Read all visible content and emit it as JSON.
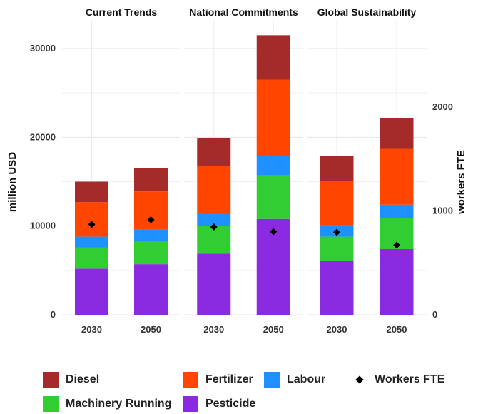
{
  "chart_data": {
    "type": "bar",
    "stacked": true,
    "facets": [
      "Current Trends",
      "National Commitments",
      "Global Sustainability"
    ],
    "categories": [
      "2030",
      "2050"
    ],
    "ylabel": "million USD",
    "y2label": "workers FTE",
    "ylim": [
      0,
      32000
    ],
    "y_ticks": [
      "0",
      "10000",
      "20000",
      "30000"
    ],
    "y2lim": [
      0,
      2750
    ],
    "y2_ticks": [
      "0",
      "1000",
      "2000"
    ],
    "grid": true,
    "legend_position": "bottom",
    "series": [
      {
        "name": "Pesticide",
        "color": "#8a2be2",
        "values": [
          [
            5200,
            5700
          ],
          [
            6900,
            10800
          ],
          [
            6100,
            7400
          ]
        ]
      },
      {
        "name": "Machinery Running",
        "color": "#32cd32",
        "values": [
          [
            2400,
            2600
          ],
          [
            3100,
            4900
          ],
          [
            2700,
            3500
          ]
        ]
      },
      {
        "name": "Labour",
        "color": "#1e90ff",
        "values": [
          [
            1200,
            1300
          ],
          [
            1500,
            2200
          ],
          [
            1300,
            1500
          ]
        ]
      },
      {
        "name": "Fertilizer",
        "color": "#ff4500",
        "values": [
          [
            3900,
            4300
          ],
          [
            5300,
            8600
          ],
          [
            5000,
            6300
          ]
        ]
      },
      {
        "name": "Diesel",
        "color": "#a52a2a",
        "values": [
          [
            2300,
            2600
          ],
          [
            3100,
            5000
          ],
          [
            2800,
            3500
          ]
        ]
      }
    ],
    "workers_fte": {
      "name": "Workers FTE",
      "values": [
        [
          870,
          915
        ],
        [
          845,
          800
        ],
        [
          795,
          670
        ]
      ]
    },
    "legend": [
      {
        "name": "Diesel",
        "color": "#a52a2a",
        "shape": "square"
      },
      {
        "name": "Fertilizer",
        "color": "#ff4500",
        "shape": "square"
      },
      {
        "name": "Labour",
        "color": "#1e90ff",
        "shape": "square"
      },
      {
        "name": "Workers FTE",
        "color": "#000000",
        "shape": "diamond"
      },
      {
        "name": "Machinery Running",
        "color": "#32cd32",
        "shape": "square"
      },
      {
        "name": "Pesticide",
        "color": "#8a2be2",
        "shape": "square"
      }
    ]
  }
}
